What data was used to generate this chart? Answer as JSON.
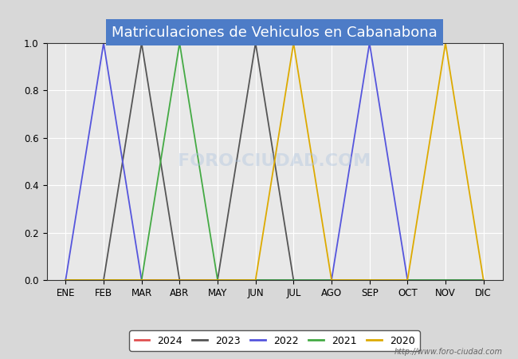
{
  "title": "Matriculaciones de Vehiculos en Cabanabona",
  "title_bgcolor": "#4d7cc7",
  "title_color": "white",
  "months": [
    "ENE",
    "FEB",
    "MAR",
    "ABR",
    "MAY",
    "JUN",
    "JUL",
    "AGO",
    "SEP",
    "OCT",
    "NOV",
    "DIC"
  ],
  "month_indices": [
    1,
    2,
    3,
    4,
    5,
    6,
    7,
    8,
    9,
    10,
    11,
    12
  ],
  "ylim": [
    0.0,
    1.0
  ],
  "yticks": [
    0.0,
    0.2,
    0.4,
    0.6,
    0.8,
    1.0
  ],
  "series": [
    {
      "year": "2024",
      "color": "#e05050",
      "data": [
        [
          1,
          0
        ],
        [
          2,
          0
        ],
        [
          3,
          0
        ],
        [
          4,
          0
        ],
        [
          5,
          0
        ],
        [
          6,
          0
        ],
        [
          7,
          0
        ],
        [
          8,
          0
        ],
        [
          9,
          0
        ],
        [
          10,
          0
        ],
        [
          11,
          0
        ],
        [
          12,
          0
        ]
      ]
    },
    {
      "year": "2023",
      "color": "#555555",
      "data": [
        [
          1,
          0
        ],
        [
          2,
          0
        ],
        [
          3,
          1
        ],
        [
          4,
          0
        ],
        [
          5,
          0
        ],
        [
          6,
          1
        ],
        [
          7,
          0
        ],
        [
          8,
          0
        ],
        [
          9,
          0
        ],
        [
          10,
          0
        ],
        [
          11,
          0
        ],
        [
          12,
          0
        ]
      ]
    },
    {
      "year": "2022",
      "color": "#5555dd",
      "data": [
        [
          1,
          0
        ],
        [
          2,
          1
        ],
        [
          3,
          0
        ],
        [
          4,
          0
        ],
        [
          5,
          0
        ],
        [
          6,
          0
        ],
        [
          7,
          0
        ],
        [
          8,
          0
        ],
        [
          9,
          1
        ],
        [
          10,
          0
        ],
        [
          11,
          0
        ],
        [
          12,
          0
        ]
      ]
    },
    {
      "year": "2021",
      "color": "#44aa44",
      "data": [
        [
          1,
          0
        ],
        [
          2,
          0
        ],
        [
          3,
          0
        ],
        [
          4,
          1
        ],
        [
          5,
          0
        ],
        [
          6,
          0
        ],
        [
          7,
          0
        ],
        [
          8,
          0
        ],
        [
          9,
          0
        ],
        [
          10,
          0
        ],
        [
          11,
          0
        ],
        [
          12,
          0
        ]
      ]
    },
    {
      "year": "2020",
      "color": "#ddaa00",
      "data": [
        [
          1,
          0
        ],
        [
          2,
          0
        ],
        [
          3,
          0
        ],
        [
          4,
          0
        ],
        [
          5,
          0
        ],
        [
          6,
          0
        ],
        [
          7,
          1
        ],
        [
          8,
          0
        ],
        [
          9,
          0
        ],
        [
          10,
          0
        ],
        [
          11,
          1
        ],
        [
          12,
          0
        ]
      ]
    }
  ],
  "legend_years": [
    "2024",
    "2023",
    "2022",
    "2021",
    "2020"
  ],
  "legend_colors": [
    "#e05050",
    "#555555",
    "#5555dd",
    "#44aa44",
    "#ddaa00"
  ],
  "watermark": "http://www.foro-ciudad.com",
  "outer_bg": "#d8d8d8",
  "plot_bg": "#e8e8e8",
  "grid_color": "#ffffff",
  "title_fontsize": 13,
  "tick_fontsize": 8.5,
  "legend_fontsize": 9
}
